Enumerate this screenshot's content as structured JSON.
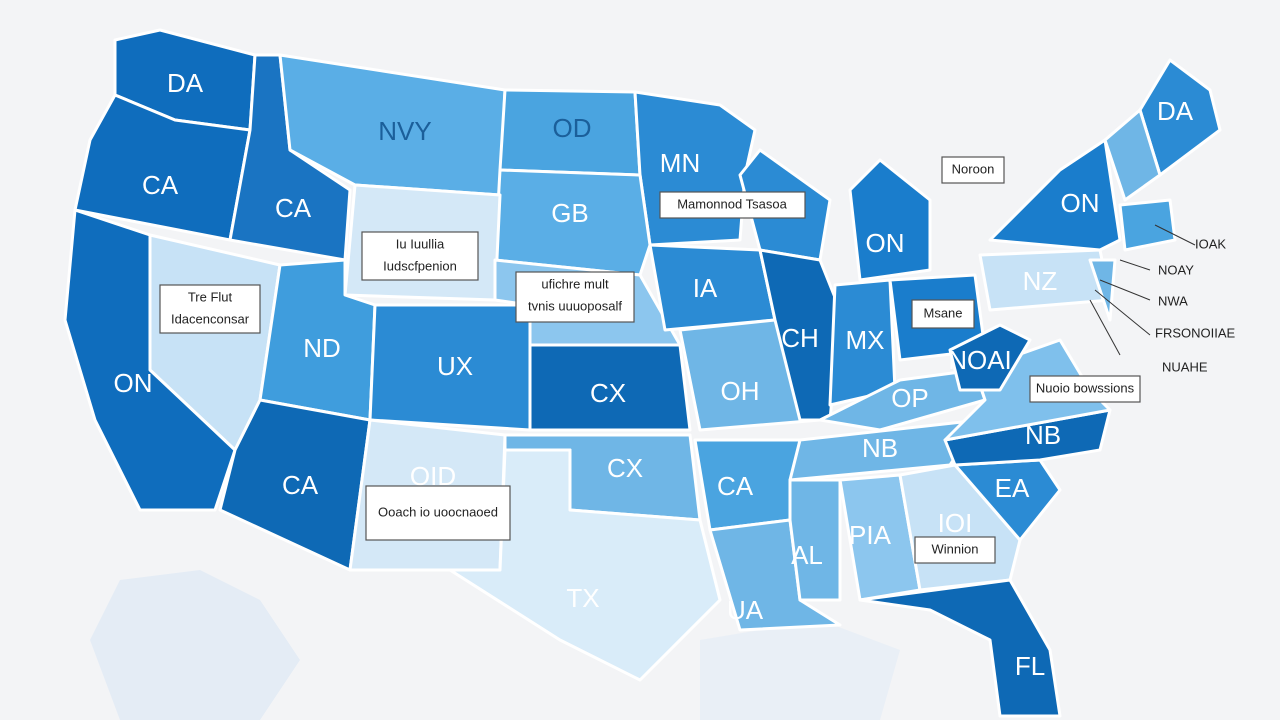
{
  "map": {
    "state_labels": [
      "DA",
      "NVY",
      "OD",
      "MN",
      "DA",
      "CA",
      "CA",
      "GB",
      "ON",
      "ON",
      "NZ",
      "ND",
      "UX",
      "ON",
      "CX",
      "IA",
      "CH",
      "MX",
      "NOAI",
      "OH",
      "OP",
      "NB",
      "NB",
      "CA",
      "CA",
      "CX",
      "OID",
      "TX",
      "AL",
      "PIA",
      "IOI",
      "EA",
      "FL",
      "UA"
    ],
    "callouts": [
      "Noroon",
      "Mamonnod Tsasoa",
      "Iu Iuullia",
      "Iudscfpenion",
      "Tre Flut",
      "Idacenconsar",
      "ufichre mult",
      "tvnis uuuoposalf",
      "Msane",
      "Nuoio bowssions",
      "Ooach io uoocnaoed",
      "Winnion"
    ],
    "side_labels": [
      "IOAK",
      "NOAY",
      "NWA",
      "FRSONOIIAE",
      "NUAHE"
    ]
  }
}
